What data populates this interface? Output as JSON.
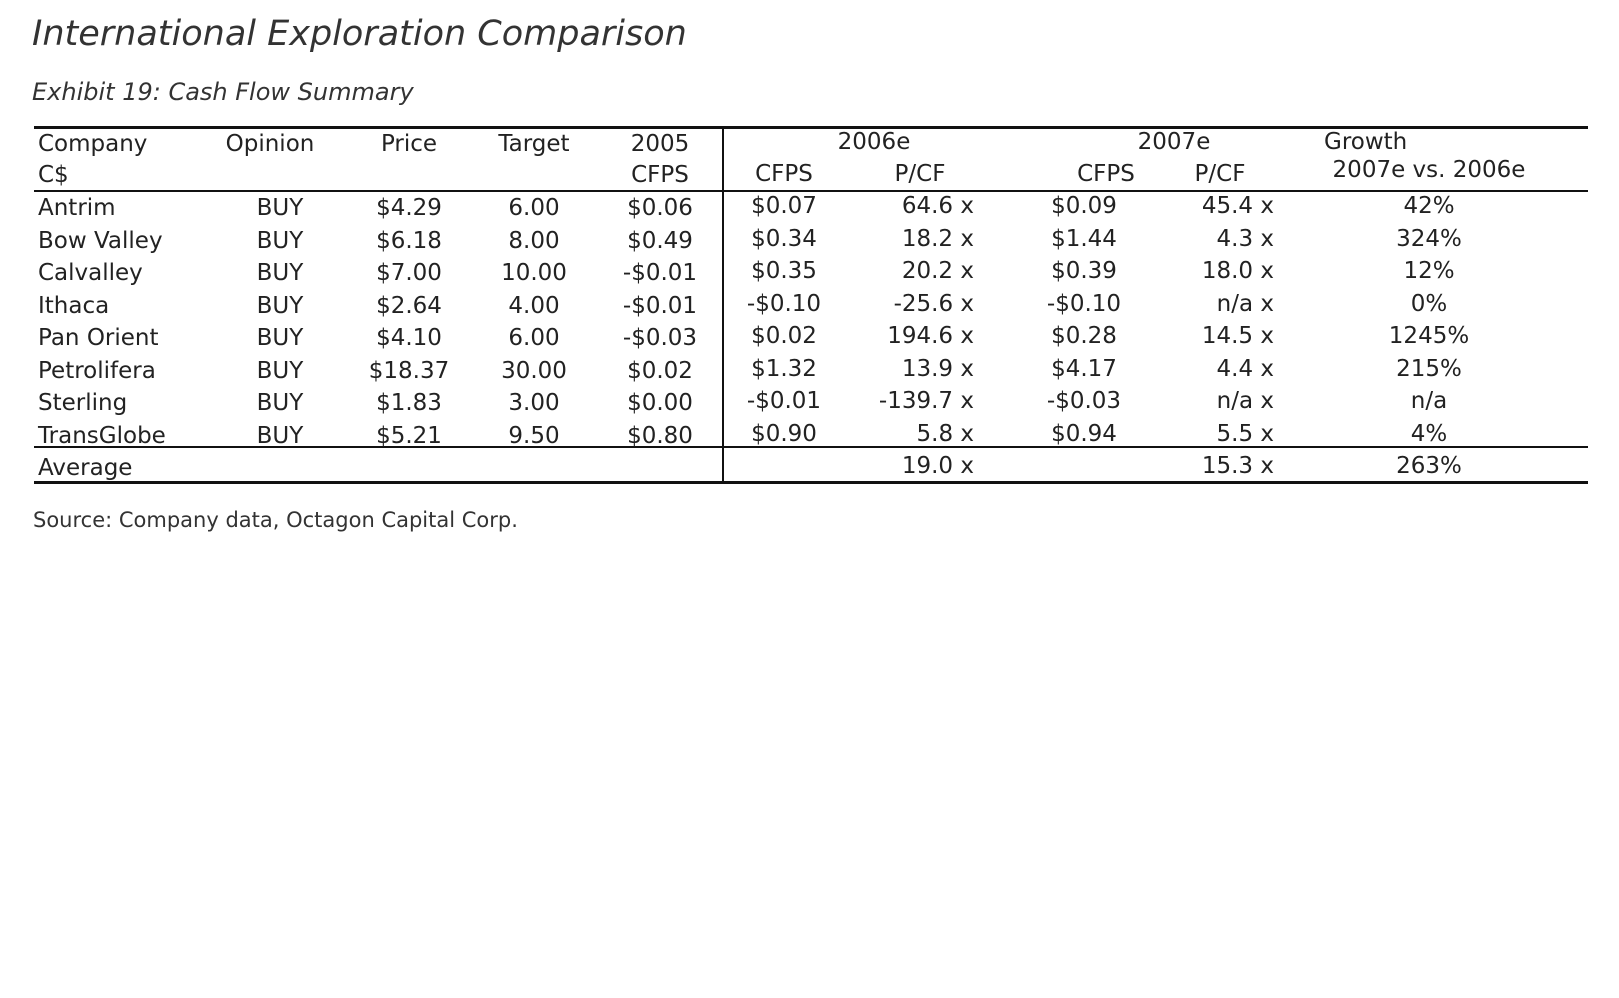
{
  "title": "International Exploration Comparison",
  "subtitle": "Exhibit 19: Cash Flow Summary",
  "source": "Source: Company data, Octagon Capital Corp.",
  "table": {
    "header_row1": {
      "company": "Company",
      "opinion": "Opinion",
      "price": "Price",
      "target": "Target",
      "y2005": "2005",
      "y2006": "2006e",
      "y2007": "2007e",
      "growth": "Growth"
    },
    "header_row2": {
      "currency": "C$",
      "cfps2005": "CFPS",
      "cfps2006": "CFPS",
      "pcf2006": "P/CF",
      "cfps2007": "CFPS",
      "pcf2007": "P/CF",
      "growth_sub": "2007e vs. 2006e"
    },
    "rows": [
      [
        "Antrim",
        "BUY",
        "$4.29",
        "6.00",
        "$0.06",
        "$0.07",
        "64.6 x",
        "$0.09",
        "45.4 x",
        "42%"
      ],
      [
        "Bow Valley",
        "BUY",
        "$6.18",
        "8.00",
        "$0.49",
        "$0.34",
        "18.2 x",
        "$1.44",
        "4.3 x",
        "324%"
      ],
      [
        "Calvalley",
        "BUY",
        "$7.00",
        "10.00",
        "-$0.01",
        "$0.35",
        "20.2 x",
        "$0.39",
        "18.0 x",
        "12%"
      ],
      [
        "Ithaca",
        "BUY",
        "$2.64",
        "4.00",
        "-$0.01",
        "-$0.10",
        "-25.6 x",
        "-$0.10",
        "n/a x",
        "0%"
      ],
      [
        "Pan Orient",
        "BUY",
        "$4.10",
        "6.00",
        "-$0.03",
        "$0.02",
        "194.6 x",
        "$0.28",
        "14.5 x",
        "1245%"
      ],
      [
        "Petrolifera",
        "BUY",
        "$18.37",
        "30.00",
        "$0.02",
        "$1.32",
        "13.9 x",
        "$4.17",
        "4.4 x",
        "215%"
      ],
      [
        "Sterling",
        "BUY",
        "$1.83",
        "3.00",
        "$0.00",
        "-$0.01",
        "-139.7 x",
        "-$0.03",
        "n/a x",
        "n/a"
      ],
      [
        "TransGlobe",
        "BUY",
        "$5.21",
        "9.50",
        "$0.80",
        "$0.90",
        "5.8 x",
        "$0.94",
        "5.5 x",
        "4%"
      ]
    ],
    "average": {
      "label": "Average",
      "pcf2006": "19.0 x",
      "pcf2007": "15.3 x",
      "growth": "263%"
    }
  }
}
